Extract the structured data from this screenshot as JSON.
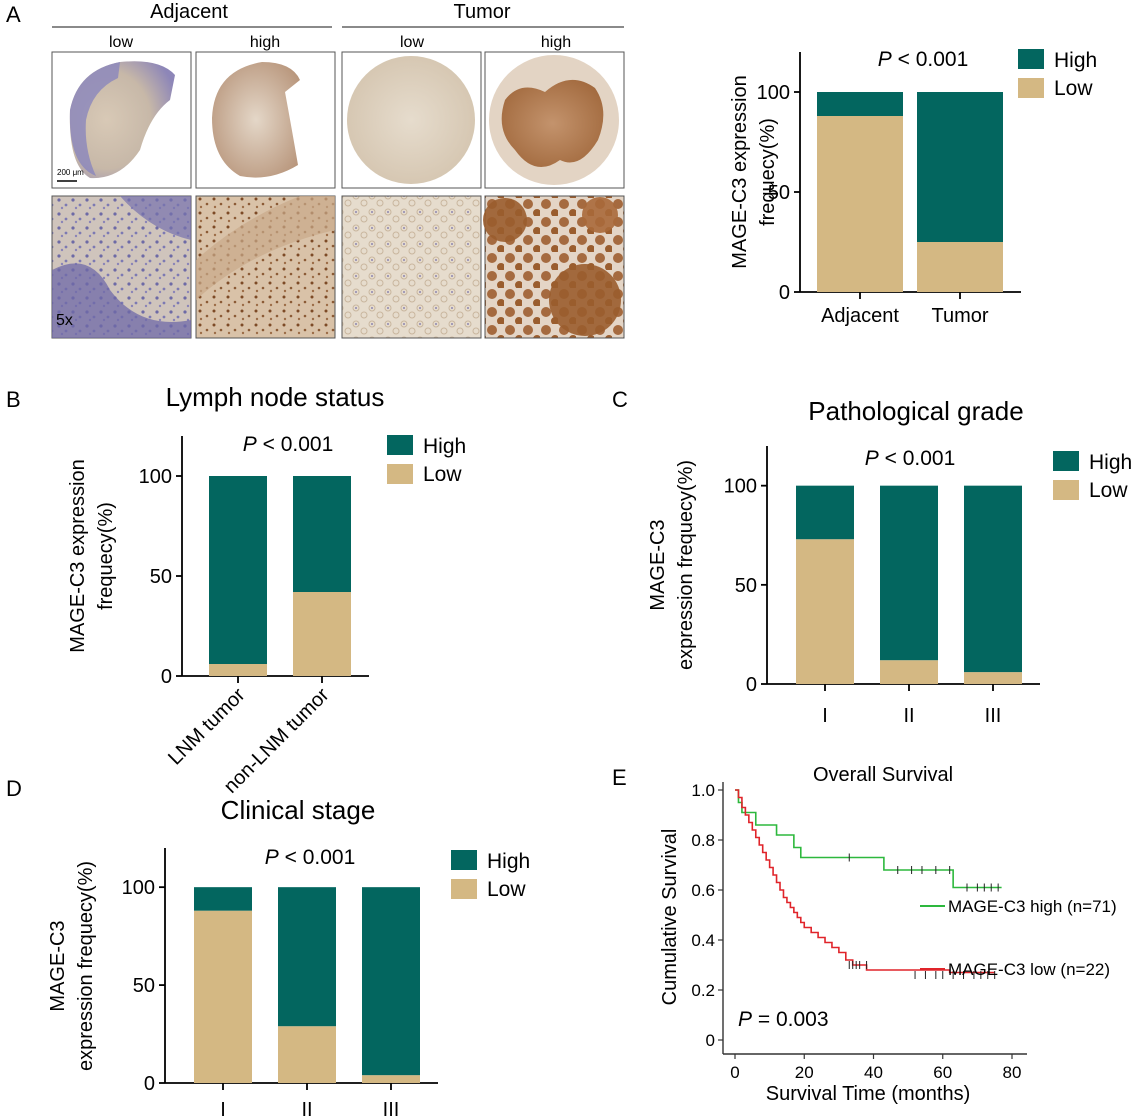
{
  "colors": {
    "high": "#03665f",
    "low": "#d4b883",
    "km_high": "#2db83d",
    "km_low": "#e0242a",
    "stain_brown": "#9a5d2e",
    "stain_blue": "#7f7fb8"
  },
  "panel_a": {
    "label": "A",
    "groups": [
      "Adjacent",
      "Tumor"
    ],
    "images": [
      {
        "title": "low",
        "scale_label": "200 μm",
        "zoom_label": "5x"
      },
      {
        "title": "high"
      },
      {
        "title": "low"
      },
      {
        "title": "high"
      }
    ]
  },
  "chart_data": [
    {
      "id": "A",
      "type": "bar",
      "stacked": true,
      "title": "",
      "annotation": "P < 0.001",
      "categories": [
        "Adjacent",
        "Tumor"
      ],
      "series": [
        {
          "name": "Low",
          "values": [
            88,
            25
          ]
        },
        {
          "name": "High",
          "values": [
            12,
            75
          ]
        }
      ],
      "ylabel": "MAGE-C3 expression frequecy(%)",
      "ylim": [
        0,
        120
      ],
      "yticks": [
        0,
        50,
        100
      ],
      "legend": "top-right"
    },
    {
      "id": "B",
      "type": "bar",
      "stacked": true,
      "title": "Lymph node status",
      "annotation": "P < 0.001",
      "categories": [
        "LNM tumor",
        "non-LNM tumor"
      ],
      "series": [
        {
          "name": "Low",
          "values": [
            6,
            42
          ]
        },
        {
          "name": "High",
          "values": [
            94,
            58
          ]
        }
      ],
      "ylabel": "MAGE-C3 expression frequecy(%)",
      "ylim": [
        0,
        120
      ],
      "yticks": [
        0,
        50,
        100
      ],
      "legend": "top-right"
    },
    {
      "id": "C",
      "type": "bar",
      "stacked": true,
      "title": "Pathological grade",
      "annotation": "P < 0.001",
      "categories": [
        "I",
        "II",
        "III"
      ],
      "series": [
        {
          "name": "Low",
          "values": [
            73,
            12,
            6
          ]
        },
        {
          "name": "High",
          "values": [
            27,
            88,
            94
          ]
        }
      ],
      "ylabel": "MAGE-C3 expression frequecy(%)",
      "ylim": [
        0,
        120
      ],
      "yticks": [
        0,
        50,
        100
      ],
      "legend": "top-right"
    },
    {
      "id": "D",
      "type": "bar",
      "stacked": true,
      "title": "Clinical stage",
      "annotation": "P < 0.001",
      "categories": [
        "I",
        "II",
        "III"
      ],
      "series": [
        {
          "name": "Low",
          "values": [
            88,
            29,
            4
          ]
        },
        {
          "name": "High",
          "values": [
            12,
            71,
            96
          ]
        }
      ],
      "ylabel": "MAGE-C3 expression frequecy(%)",
      "ylim": [
        0,
        120
      ],
      "yticks": [
        0,
        50,
        100
      ],
      "legend": "top-right"
    },
    {
      "id": "E",
      "type": "line",
      "title": "Overall Survival",
      "annotation": "P = 0.003",
      "xlabel": "Survival Time (months)",
      "ylabel": "Cumulative Survival",
      "xlim": [
        0,
        80
      ],
      "ylim": [
        0,
        1
      ],
      "xticks": [
        0,
        20,
        40,
        60,
        80
      ],
      "yticks": [
        0,
        0.2,
        0.4,
        0.6,
        0.8,
        1.0
      ],
      "series": [
        {
          "name": "MAGE-C3 high (n=71)",
          "step": [
            [
              0,
              1.0
            ],
            [
              1,
              0.95
            ],
            [
              2,
              0.91
            ],
            [
              6,
              0.86
            ],
            [
              12,
              0.82
            ],
            [
              17,
              0.77
            ],
            [
              19,
              0.73
            ],
            [
              43,
              0.68
            ],
            [
              63,
              0.61
            ],
            [
              77,
              0.61
            ]
          ],
          "censored": [
            [
              33,
              0.73
            ],
            [
              47,
              0.68
            ],
            [
              51,
              0.68
            ],
            [
              54,
              0.68
            ],
            [
              58,
              0.68
            ],
            [
              62,
              0.68
            ],
            [
              67,
              0.61
            ],
            [
              70,
              0.61
            ],
            [
              72,
              0.61
            ],
            [
              74,
              0.61
            ],
            [
              76,
              0.61
            ]
          ]
        },
        {
          "name": "MAGE-C3 low (n=22)",
          "step": [
            [
              0,
              1.0
            ],
            [
              1,
              0.97
            ],
            [
              2,
              0.93
            ],
            [
              3,
              0.9
            ],
            [
              4,
              0.87
            ],
            [
              5,
              0.84
            ],
            [
              6,
              0.81
            ],
            [
              7,
              0.78
            ],
            [
              8,
              0.75
            ],
            [
              9,
              0.72
            ],
            [
              10,
              0.69
            ],
            [
              11,
              0.66
            ],
            [
              12,
              0.63
            ],
            [
              13,
              0.6
            ],
            [
              14,
              0.57
            ],
            [
              15,
              0.55
            ],
            [
              16,
              0.53
            ],
            [
              17,
              0.51
            ],
            [
              18,
              0.49
            ],
            [
              19,
              0.47
            ],
            [
              20,
              0.45
            ],
            [
              22,
              0.43
            ],
            [
              24,
              0.41
            ],
            [
              26,
              0.39
            ],
            [
              28,
              0.37
            ],
            [
              30,
              0.35
            ],
            [
              32,
              0.32
            ],
            [
              34,
              0.3
            ],
            [
              38,
              0.28
            ],
            [
              62,
              0.27
            ],
            [
              75,
              0.27
            ]
          ],
          "censored": [
            [
              33,
              0.3
            ],
            [
              34,
              0.3
            ],
            [
              35,
              0.3
            ],
            [
              36,
              0.3
            ],
            [
              38,
              0.3
            ],
            [
              52,
              0.26
            ],
            [
              55,
              0.26
            ],
            [
              58,
              0.26
            ],
            [
              60,
              0.26
            ],
            [
              63,
              0.26
            ],
            [
              66,
              0.26
            ],
            [
              69,
              0.26
            ],
            [
              71,
              0.26
            ],
            [
              73,
              0.26
            ],
            [
              75,
              0.26
            ]
          ]
        }
      ],
      "legend": "right"
    }
  ]
}
